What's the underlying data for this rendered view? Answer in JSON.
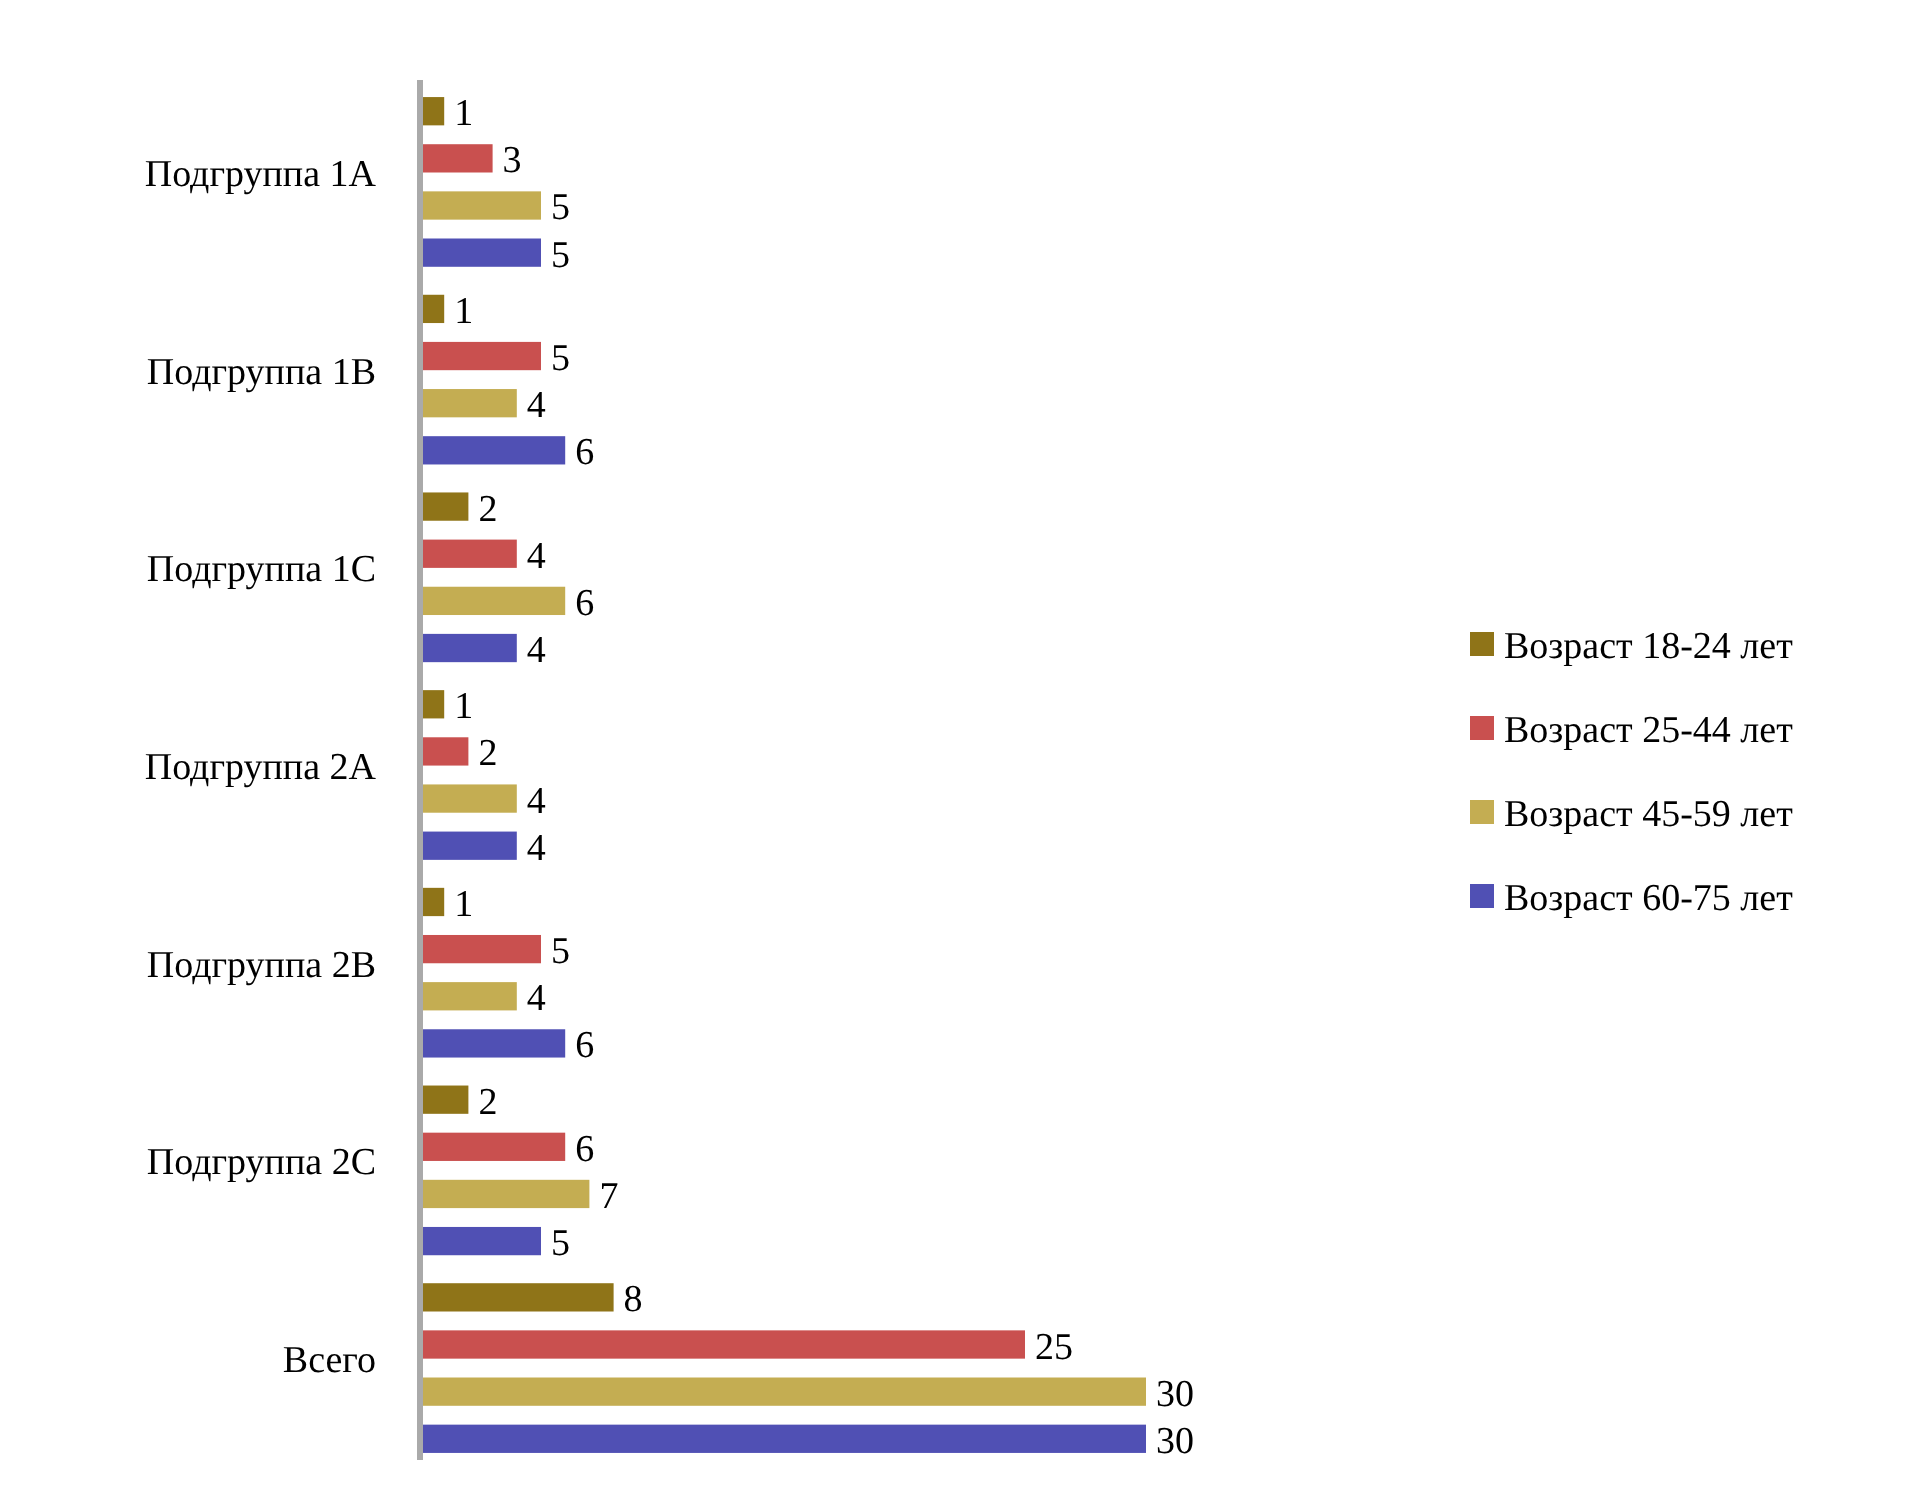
{
  "chart_data": {
    "type": "bar",
    "orientation": "horizontal",
    "data_labels": true,
    "legend": "right",
    "categories": [
      "Подгруппа 1A",
      "Подгруппа 1B",
      "Подгруппа 1C",
      "Подгруппа 2A",
      "Подгруппа 2B",
      "Подгруппа 2C",
      "Всего"
    ],
    "series": [
      {
        "name": "Возраст 18-24 лет",
        "color": "#8f7418",
        "values": [
          1,
          1,
          2,
          1,
          1,
          2,
          8
        ]
      },
      {
        "name": "Возраст 25-44 лет",
        "color": "#c9504f",
        "values": [
          3,
          5,
          4,
          2,
          5,
          6,
          25
        ]
      },
      {
        "name": "Возраст 45-59 лет",
        "color": "#c4ad52",
        "values": [
          5,
          4,
          6,
          4,
          4,
          7,
          30
        ]
      },
      {
        "name": "Возраст 60-75 лет",
        "color": "#5050b4",
        "values": [
          5,
          6,
          4,
          4,
          6,
          5,
          30
        ]
      }
    ]
  }
}
